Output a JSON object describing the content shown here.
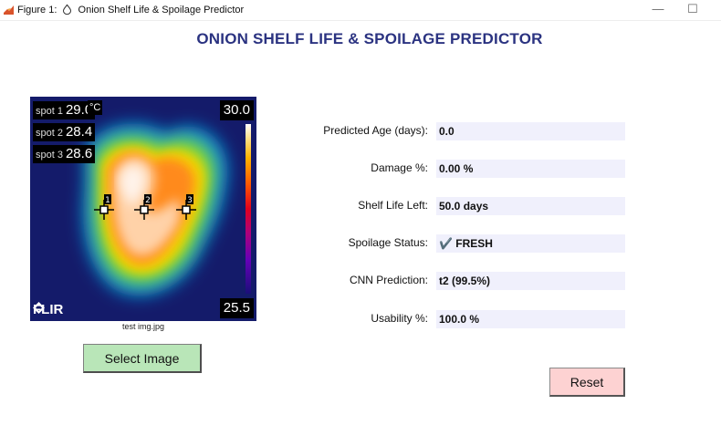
{
  "window": {
    "title_prefix": "Figure 1:",
    "title_text": "Onion Shelf Life & Spoilage Predictor",
    "minimize_glyph": "—",
    "maximize_glyph": "☐"
  },
  "header": {
    "title": "ONION SHELF LIFE & SPOILAGE PREDICTOR"
  },
  "thermal_image": {
    "spots": [
      {
        "label": "spot 1",
        "value": "29.0"
      },
      {
        "label": "spot 2",
        "value": "28.4"
      },
      {
        "label": "spot 3",
        "value": "28.6"
      }
    ],
    "marker_labels": [
      "1",
      "2",
      "3"
    ],
    "unit": "°C",
    "max_temp": "30.0",
    "min_temp": "25.5",
    "logo": "FLIR",
    "filename": "test img.jpg"
  },
  "buttons": {
    "select_image": "Select Image",
    "reset": "Reset"
  },
  "results": [
    {
      "label": "Predicted Age (days):",
      "value": "0.0"
    },
    {
      "label": "Damage %:",
      "value": "0.00 %"
    },
    {
      "label": "Shelf Life Left:",
      "value": "50.0 days"
    },
    {
      "label": "Spoilage Status:",
      "value": "✔️ FRESH"
    },
    {
      "label": "CNN Prediction:",
      "value": "t2 (99.5%)"
    },
    {
      "label": "Usability %:",
      "value": "100.0 %"
    }
  ],
  "colors": {
    "title": "#2b3381",
    "select_button": "#b9e6b8",
    "reset_button": "#fdd2d2",
    "value_field": "#f0f0fc"
  }
}
